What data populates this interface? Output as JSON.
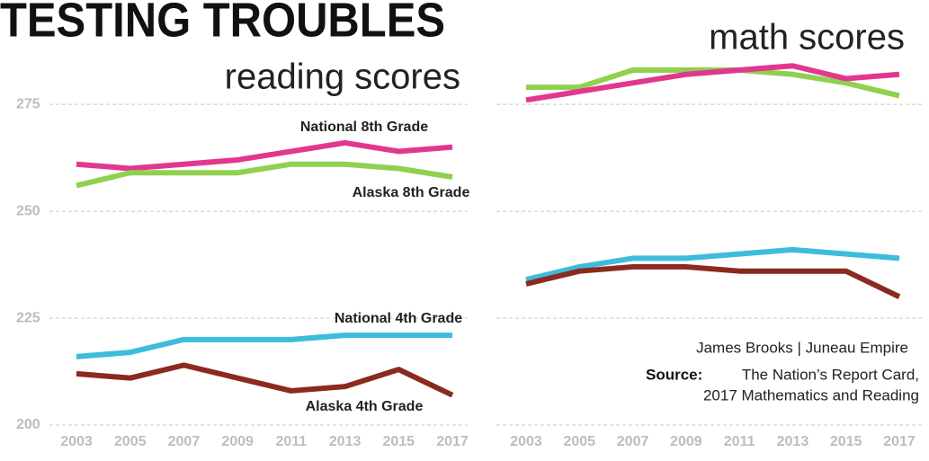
{
  "title": "TESTING TROUBLES",
  "credit": "James Brooks | Juneau Empire",
  "source_label": "Source:",
  "source_line1": "The Nation’s Report Card,",
  "source_line2": "2017 Mathematics and Reading",
  "chart_data": [
    {
      "type": "line",
      "title": "reading scores",
      "categories": [
        "2003",
        "2005",
        "2007",
        "2009",
        "2011",
        "2013",
        "2015",
        "2017"
      ],
      "ylim": [
        200,
        287
      ],
      "yticks": [
        200,
        225,
        250,
        275
      ],
      "grid": true,
      "tick_labels": true,
      "series": [
        {
          "name": "National 8th Grade",
          "color": "#e2378f",
          "values": [
            261,
            260,
            261,
            262,
            264,
            266,
            264,
            265
          ]
        },
        {
          "name": "Alaska 8th Grade",
          "color": "#8fd14f",
          "values": [
            256,
            259,
            259,
            259,
            261,
            261,
            260,
            258
          ]
        },
        {
          "name": "National 4th Grade",
          "color": "#3dbcdc",
          "values": [
            216,
            217,
            220,
            220,
            220,
            221,
            221,
            221
          ]
        },
        {
          "name": "Alaska 4th Grade",
          "color": "#8b2a1e",
          "values": [
            212,
            211,
            214,
            211,
            208,
            209,
            213,
            207
          ]
        }
      ]
    },
    {
      "type": "line",
      "title": "math scores",
      "categories": [
        "2003",
        "2005",
        "2007",
        "2009",
        "2011",
        "2013",
        "2015",
        "2017"
      ],
      "ylim": [
        200,
        287
      ],
      "yticks": [
        200,
        225,
        250,
        275
      ],
      "grid": true,
      "tick_labels": false,
      "series": [
        {
          "color": "#8fd14f",
          "values": [
            279,
            279,
            283,
            283,
            283,
            282,
            280,
            277
          ]
        },
        {
          "color": "#e2378f",
          "values": [
            276,
            278,
            280,
            282,
            283,
            284,
            281,
            282
          ]
        },
        {
          "color": "#3dbcdc",
          "values": [
            234,
            237,
            239,
            239,
            240,
            241,
            240,
            239
          ]
        },
        {
          "color": "#8b2a1e",
          "values": [
            233,
            236,
            237,
            237,
            236,
            236,
            236,
            230
          ]
        }
      ]
    }
  ]
}
